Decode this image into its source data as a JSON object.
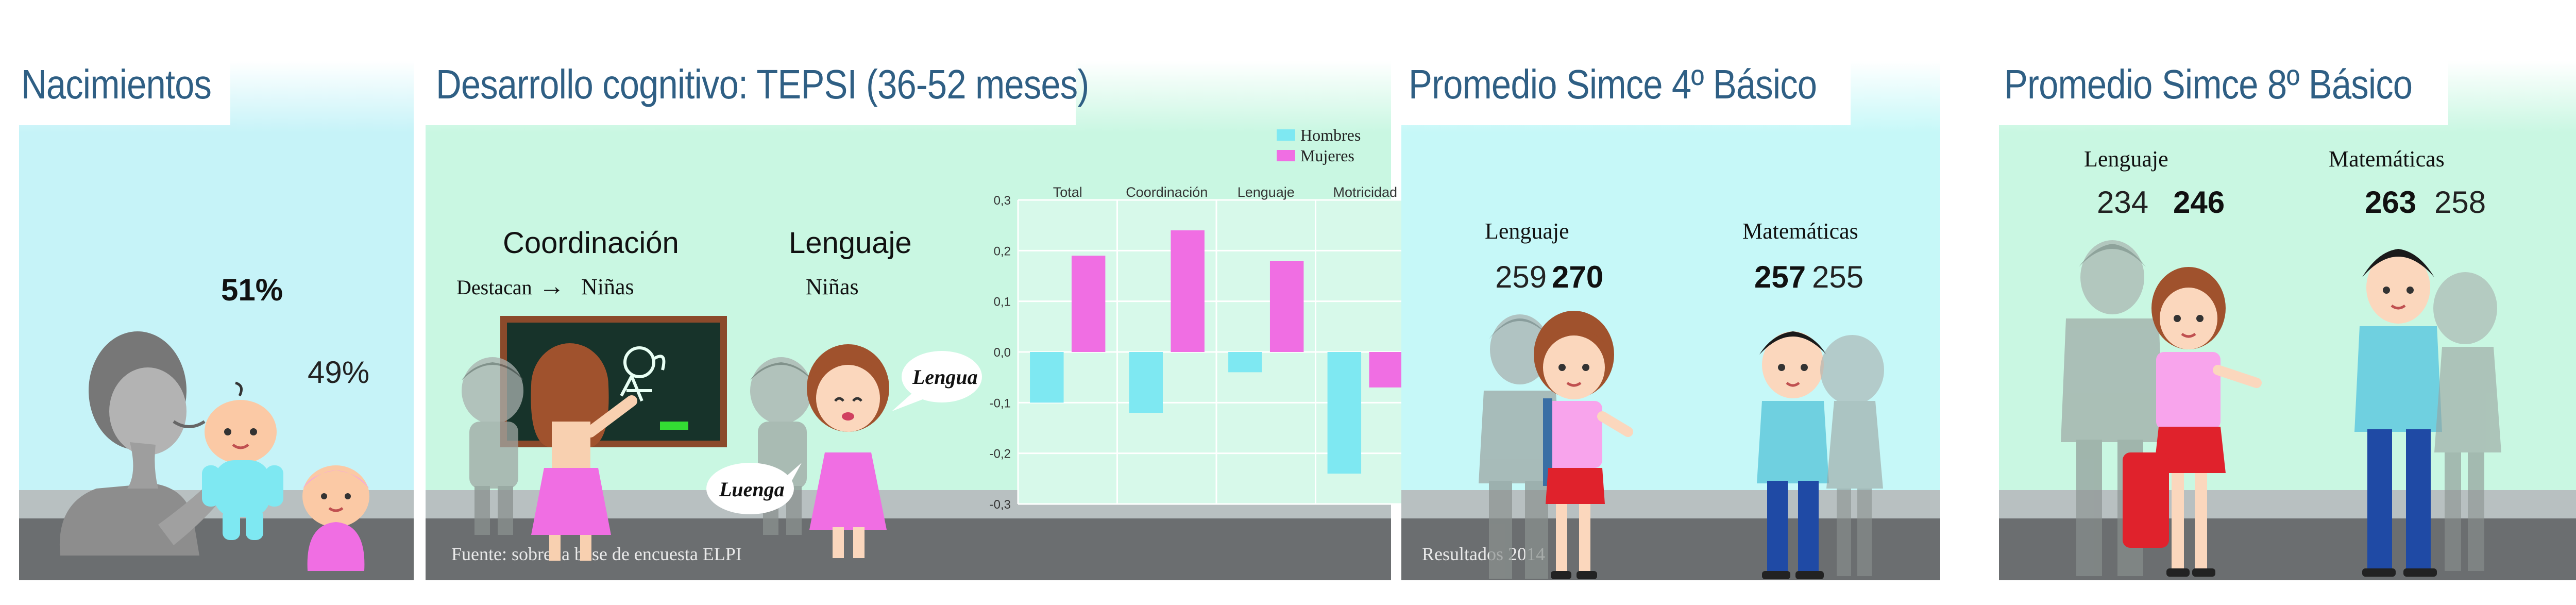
{
  "panels": {
    "births": {
      "title": "Nacimientos",
      "boys_pct": "51%",
      "girls_pct": "49%"
    },
    "tepsi": {
      "title": "Desarrollo cognitivo: TEPSI (36-52 meses)",
      "coord_label": "Coordinación",
      "destacan": "Destacan",
      "arrow": "→",
      "coord_value": "Niñas",
      "lang_label": "Lenguaje",
      "lang_value": "Niñas",
      "bubble_girl": "Lengua",
      "bubble_boy": "Luenga",
      "footer": "Fuente: sobre la base de encuesta ELPI"
    },
    "simce4": {
      "title": "Promedio Simce 4º Básico",
      "lang_label": "Lenguaje",
      "lang_boys": "259",
      "lang_girls": "270",
      "math_label": "Matemáticas",
      "math_boys": "257",
      "math_girls": "255",
      "footer": "Resultados 2014"
    },
    "simce8": {
      "title": "Promedio Simce 8º Básico",
      "lang_label": "Lenguaje",
      "lang_boys": "234",
      "lang_girls": "246",
      "math_label": "Matemáticas",
      "math_boys": "263",
      "math_girls": "258"
    }
  },
  "chart_data": {
    "type": "bar",
    "categories": [
      "Total",
      "Coordinación",
      "Lenguaje",
      "Motricidad"
    ],
    "series": [
      {
        "name": "Hombres",
        "color": "#7ee8f2",
        "values": [
          -0.1,
          -0.12,
          -0.04,
          -0.24
        ]
      },
      {
        "name": "Mujeres",
        "color": "#f06ee3",
        "values": [
          0.19,
          0.24,
          0.18,
          -0.07
        ]
      }
    ],
    "ylim": [
      -0.3,
      0.3
    ],
    "yticks": [
      "0,3",
      "0,2",
      "0,1",
      "0,0",
      "-0,1",
      "-0,2",
      "-0,3"
    ],
    "grid": true,
    "legend": "top-right"
  },
  "colors": {
    "panel_light_blue": "#c6f3f8",
    "panel_light_green": "#c9f7e2",
    "title_blue": "#2f5f84",
    "hombres": "#7ee8f2",
    "mujeres": "#f06ee3"
  }
}
